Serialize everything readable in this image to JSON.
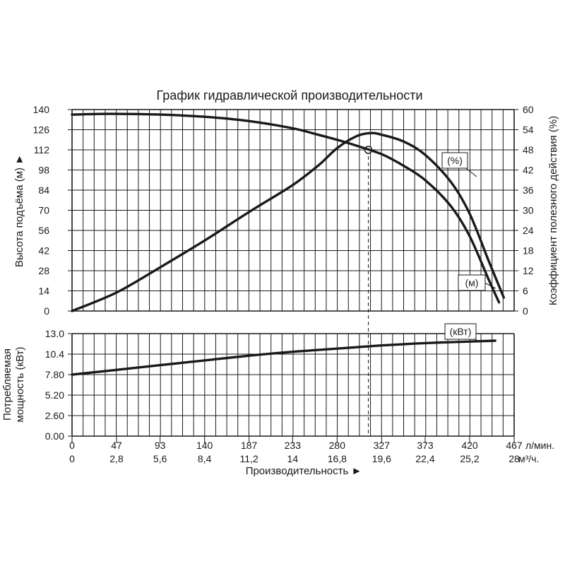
{
  "chart_data": {
    "type": "line",
    "title": "График гидравлической производительности",
    "x_flow": {
      "unit": "л/мин.",
      "ticks": [
        0,
        47,
        93,
        140,
        187,
        233,
        280,
        327,
        373,
        420,
        467
      ],
      "tick_labels": [
        "0",
        "47",
        "93",
        "140",
        "187",
        "233",
        "280",
        "327",
        "373",
        "420",
        "467"
      ]
    },
    "x_volume": {
      "unit": "м³/ч.",
      "tick_labels": [
        "0",
        "2,8",
        "5,6",
        "8,4",
        "11,2",
        "14",
        "16,8",
        "19,6",
        "22,4",
        "25,2",
        "28"
      ]
    },
    "xlabel": "Производительность ►",
    "head_axis": {
      "label": "Высота подъёма (м) ►",
      "ylim": [
        0,
        140
      ],
      "ticks": [
        0,
        14,
        28,
        42,
        56,
        70,
        84,
        98,
        112,
        126,
        140
      ],
      "tick_labels": [
        "0",
        "14",
        "28",
        "42",
        "56",
        "70",
        "84",
        "98",
        "112",
        "126",
        "140"
      ]
    },
    "efficiency_axis": {
      "label": "Коэффициент полезного действия (%)",
      "ylim": [
        0,
        60
      ],
      "ticks": [
        0,
        6,
        12,
        18,
        24,
        30,
        36,
        42,
        48,
        54,
        60
      ],
      "tick_labels": [
        "0",
        "6",
        "12",
        "18",
        "24",
        "30",
        "36",
        "42",
        "48",
        "54",
        "60"
      ]
    },
    "power_axis": {
      "label_lines": [
        "Потребляемая",
        "мощность (кВт)"
      ],
      "ylim": [
        0,
        13
      ],
      "ticks": [
        0,
        2.6,
        5.2,
        7.8,
        10.4,
        13
      ],
      "tick_labels": [
        "0.00",
        "2.60",
        "5.20",
        "7.80",
        "10.4",
        "13.0"
      ]
    },
    "series": [
      {
        "name": "(м)",
        "axis": "head",
        "x": [
          0,
          40,
          93,
          140,
          187,
          233,
          260,
          280,
          300,
          327,
          350,
          373,
          400,
          420,
          440,
          451
        ],
        "y": [
          136.5,
          137,
          136.5,
          135,
          132,
          127,
          122.5,
          119,
          115,
          109,
          101,
          91,
          73,
          52,
          22,
          6
        ]
      },
      {
        "name": "(%)",
        "axis": "efficiency",
        "x": [
          0,
          47,
          93,
          140,
          187,
          233,
          260,
          280,
          300,
          315,
          327,
          350,
          373,
          400,
          420,
          440,
          456
        ],
        "y": [
          0,
          5.5,
          13,
          21,
          29.5,
          37.5,
          43.3,
          48.5,
          52,
          53,
          52.5,
          50.5,
          46.5,
          38.5,
          29,
          15,
          4
        ]
      },
      {
        "name": "(кВт)",
        "axis": "power",
        "x": [
          0,
          47,
          93,
          140,
          187,
          233,
          280,
          327,
          373,
          420,
          447
        ],
        "y": [
          7.8,
          8.4,
          9.0,
          9.6,
          10.2,
          10.7,
          11.1,
          11.5,
          11.8,
          12.0,
          12.1
        ]
      }
    ],
    "duty_point": {
      "flow": 313,
      "head": 112
    },
    "grid": true
  }
}
